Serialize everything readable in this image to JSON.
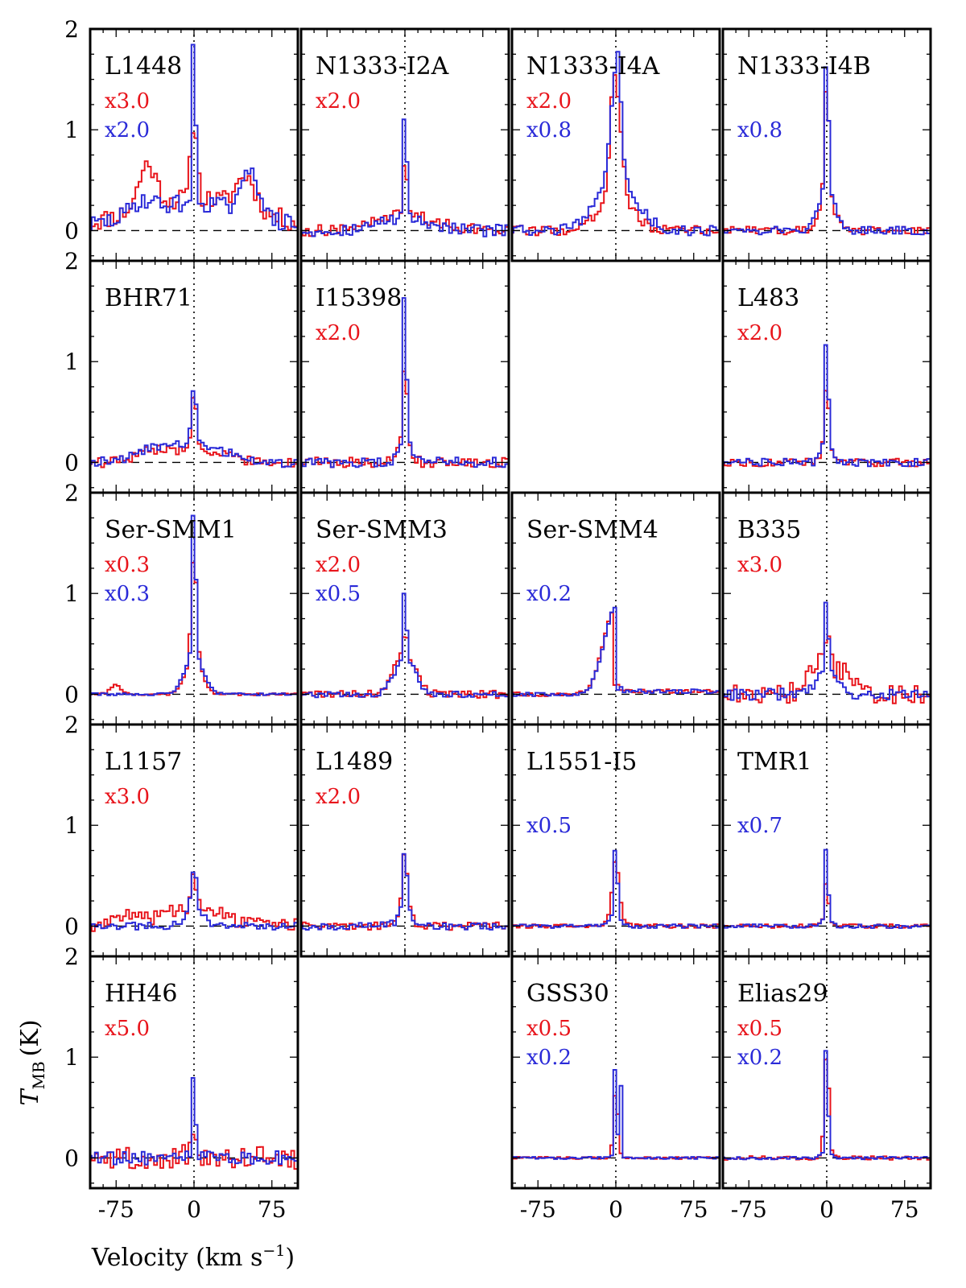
{
  "chart_data": {
    "type": "line",
    "title": "",
    "xlabel": "Velocity (km s",
    "xlabel_sup": "−1",
    "xlabel_close": ")",
    "ylabel_main": "T",
    "ylabel_sub": "MB",
    "ylabel_unit": "(K)",
    "xlim": [
      -100,
      100
    ],
    "ylim": [
      -0.3,
      2.0
    ],
    "x_ticks": [
      -75,
      0,
      75
    ],
    "x_tick_labels": [
      "-75",
      "0",
      "75"
    ],
    "y_ticks": [
      0,
      1,
      2
    ],
    "y_tick_labels": [
      "0",
      "1",
      "2"
    ],
    "colors": {
      "red": "#e8141b",
      "blue": "#2a2ad8",
      "axes": "#000000"
    },
    "panels": [
      {
        "row": 0,
        "col": 0,
        "name": "L1448",
        "red_scale": "x3.0",
        "blue_scale": "x2.0",
        "red": {
          "peak": 0.78,
          "width": 3,
          "wing_amp": 0.32,
          "wing_width": 60,
          "features": [
            [
              -45,
              0.42,
              8
            ],
            [
              50,
              0.32,
              9
            ]
          ],
          "noise": 0.1
        },
        "blue": {
          "peak": 1.85,
          "width": 1.5,
          "wing_amp": 0.28,
          "wing_width": 55,
          "features": [
            [
              -50,
              0.12,
              10
            ],
            [
              55,
              0.48,
              7
            ]
          ],
          "noise": 0.09
        }
      },
      {
        "row": 0,
        "col": 1,
        "name": "N1333-I2A",
        "red_scale": "x2.0",
        "blue_scale": "",
        "red": {
          "peak": 0.6,
          "width": 2,
          "wing_amp": 0.15,
          "wing_width": 30,
          "features": [],
          "noise": 0.06
        },
        "blue": {
          "peak": 1.3,
          "width": 1.5,
          "wing_amp": 0.12,
          "wing_width": 25,
          "features": [],
          "noise": 0.06
        }
      },
      {
        "row": 0,
        "col": 2,
        "name": "N1333-I4A",
        "red_scale": "x2.0",
        "blue_scale": "x0.8",
        "red": {
          "peak": 1.05,
          "width": 5,
          "wing_amp": 0.35,
          "wing_width": 16,
          "features": [
            [
              -3,
              0.3,
              2
            ]
          ],
          "noise": 0.05
        },
        "blue": {
          "peak": 1.15,
          "width": 5,
          "wing_amp": 0.45,
          "wing_width": 20,
          "features": [
            [
              3,
              0.25,
              2
            ]
          ],
          "noise": 0.05
        }
      },
      {
        "row": 0,
        "col": 3,
        "name": "N1333-I4B",
        "red_scale": "",
        "blue_scale": "x0.8",
        "red": {
          "peak": 1.2,
          "width": 2.2,
          "wing_amp": 0.3,
          "wing_width": 8,
          "features": [],
          "noise": 0.04
        },
        "blue": {
          "peak": 1.55,
          "width": 1.7,
          "wing_amp": 0.35,
          "wing_width": 9,
          "features": [],
          "noise": 0.04
        }
      },
      {
        "row": 1,
        "col": 0,
        "name": "BHR71",
        "red_scale": "",
        "blue_scale": "",
        "red": {
          "peak": 0.55,
          "width": 2.5,
          "wing_amp": 0.12,
          "wing_width": 28,
          "features": [
            [
              -40,
              0.08,
              15
            ]
          ],
          "noise": 0.05
        },
        "blue": {
          "peak": 0.62,
          "width": 2.2,
          "wing_amp": 0.18,
          "wing_width": 30,
          "features": [
            [
              -45,
              0.08,
              15
            ]
          ],
          "noise": 0.05
        }
      },
      {
        "row": 1,
        "col": 1,
        "name": "I15398",
        "red_scale": "x2.0",
        "blue_scale": "",
        "red": {
          "peak": 0.75,
          "width": 2,
          "wing_amp": 0.22,
          "wing_width": 6,
          "features": [],
          "noise": 0.05
        },
        "blue": {
          "peak": 1.9,
          "width": 1.3,
          "wing_amp": 0.25,
          "wing_width": 5,
          "features": [],
          "noise": 0.05
        }
      },
      {
        "row": 1,
        "col": 3,
        "name": "L483",
        "red_scale": "x2.0",
        "blue_scale": "",
        "red": {
          "peak": 0.55,
          "width": 2,
          "wing_amp": 0.2,
          "wing_width": 5,
          "features": [],
          "noise": 0.04
        },
        "blue": {
          "peak": 1.3,
          "width": 1.3,
          "wing_amp": 0.22,
          "wing_width": 5,
          "features": [],
          "noise": 0.04
        }
      },
      {
        "row": 2,
        "col": 0,
        "name": "Ser-SMM1",
        "red_scale": "x0.3",
        "blue_scale": "x0.3",
        "red": {
          "peak": 1.05,
          "width": 2.5,
          "wing_amp": 0.35,
          "wing_width": 8,
          "features": [
            [
              -75,
              0.09,
              5
            ]
          ],
          "noise": 0.012
        },
        "blue": {
          "peak": 1.7,
          "width": 1.6,
          "wing_amp": 0.38,
          "wing_width": 9,
          "features": [],
          "noise": 0.012
        }
      },
      {
        "row": 2,
        "col": 1,
        "name": "Ser-SMM3",
        "red_scale": "x2.0",
        "blue_scale": "x0.5",
        "red": {
          "peak": 0.2,
          "width": 2,
          "wing_amp": 0.42,
          "wing_width": 10,
          "features": [],
          "noise": 0.04
        },
        "blue": {
          "peak": 0.85,
          "width": 1.4,
          "wing_amp": 0.35,
          "wing_width": 10,
          "features": [],
          "noise": 0.03
        }
      },
      {
        "row": 2,
        "col": 2,
        "name": "Ser-SMM4",
        "red_scale": "",
        "blue_scale": "x0.2",
        "red": {
          "peak": 0.0,
          "width": 2,
          "wing_amp": 0.0,
          "wing_width": 5,
          "features": [],
          "noise": 0.02
        },
        "blue": {
          "peak": 0.0,
          "width": 2,
          "wing_amp": 0.0,
          "wing_width": 5,
          "features": [],
          "noise": 0.02
        },
        "absorption": {
          "left_peak": 0.87,
          "left_width": 12,
          "gap_to": 3
        }
      },
      {
        "row": 2,
        "col": 3,
        "name": "B335",
        "red_scale": "x3.0",
        "blue_scale": "",
        "red": {
          "peak": 0.25,
          "width": 3,
          "wing_amp": 0.28,
          "wing_width": 14,
          "features": [
            [
              -15,
              0.12,
              6
            ],
            [
              20,
              0.12,
              6
            ]
          ],
          "noise": 0.1
        },
        "blue": {
          "peak": 0.85,
          "width": 1.3,
          "wing_amp": 0.28,
          "wing_width": 8,
          "features": [],
          "noise": 0.06
        }
      },
      {
        "row": 3,
        "col": 0,
        "name": "L1157",
        "red_scale": "x3.0",
        "blue_scale": "",
        "red": {
          "peak": 0.35,
          "width": 2.5,
          "wing_amp": 0.18,
          "wing_width": 25,
          "features": [
            [
              -60,
              0.1,
              15
            ]
          ],
          "noise": 0.08
        },
        "blue": {
          "peak": 0.38,
          "width": 2.5,
          "wing_amp": 0.18,
          "wing_width": 8,
          "features": [],
          "noise": 0.04
        }
      },
      {
        "row": 3,
        "col": 1,
        "name": "L1489",
        "red_scale": "x2.0",
        "blue_scale": "",
        "red": {
          "peak": 0.55,
          "width": 2.2,
          "wing_amp": 0.2,
          "wing_width": 6,
          "features": [],
          "noise": 0.04
        },
        "blue": {
          "peak": 0.6,
          "width": 2,
          "wing_amp": 0.18,
          "wing_width": 6,
          "features": [],
          "noise": 0.04
        }
      },
      {
        "row": 3,
        "col": 2,
        "name": "L1551-I5",
        "red_scale": "",
        "blue_scale": "x0.5",
        "red": {
          "peak": 0.5,
          "width": 3,
          "wing_amp": 0.15,
          "wing_width": 6,
          "features": [],
          "noise": 0.02
        },
        "blue": {
          "peak": 0.78,
          "width": 1.5,
          "wing_amp": 0.12,
          "wing_width": 5,
          "features": [],
          "noise": 0.02
        }
      },
      {
        "row": 3,
        "col": 3,
        "name": "TMR1",
        "red_scale": "",
        "blue_scale": "x0.7",
        "red": {
          "peak": 0.4,
          "width": 1.5,
          "wing_amp": 0.08,
          "wing_width": 4,
          "features": [],
          "noise": 0.02
        },
        "blue": {
          "peak": 0.95,
          "width": 1.2,
          "wing_amp": 0.08,
          "wing_width": 4,
          "features": [],
          "noise": 0.02
        }
      },
      {
        "row": 4,
        "col": 0,
        "name": "HH46",
        "red_scale": "x5.0",
        "blue_scale": "",
        "red": {
          "peak": 0.3,
          "width": 2,
          "wing_amp": 0.05,
          "wing_width": 10,
          "features": [],
          "noise": 0.11
        },
        "blue": {
          "peak": 1.0,
          "width": 1.2,
          "wing_amp": 0.05,
          "wing_width": 8,
          "features": [],
          "noise": 0.07
        }
      },
      {
        "row": 4,
        "col": 2,
        "name": "GSS30",
        "red_scale": "x0.5",
        "blue_scale": "x0.2",
        "red": {
          "peak": 0.65,
          "width": 2,
          "wing_amp": 0.05,
          "wing_width": 4,
          "features": [],
          "noise": 0.012
        },
        "blue": {
          "peak": 1.35,
          "width": 1,
          "wing_amp": 0.05,
          "wing_width": 3,
          "features": [
            [
              5,
              0.7,
              0.8
            ]
          ],
          "noise": 0.012
        }
      },
      {
        "row": 4,
        "col": 3,
        "name": "Elias29",
        "red_scale": "x0.5",
        "blue_scale": "x0.2",
        "red": {
          "peak": 1.0,
          "width": 2,
          "wing_amp": 0.1,
          "wing_width": 4,
          "features": [],
          "noise": 0.02
        },
        "blue": {
          "peak": 1.35,
          "width": 1.2,
          "wing_amp": 0.1,
          "wing_width": 4,
          "features": [],
          "noise": 0.015
        }
      }
    ]
  }
}
